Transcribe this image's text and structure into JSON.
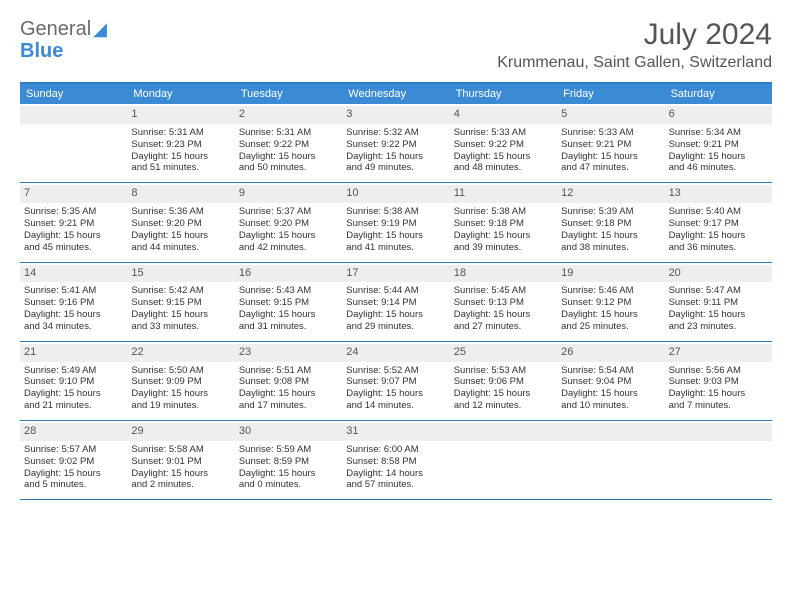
{
  "brand": {
    "line1": "General",
    "line2": "Blue"
  },
  "title": "July 2024",
  "location": "Krummenau, Saint Gallen, Switzerland",
  "colors": {
    "accent": "#3b8bd4",
    "rule": "#2e7bbf",
    "dayband": "#eceef0",
    "text": "#333333",
    "muted": "#555555",
    "background": "#ffffff"
  },
  "typography": {
    "title_fontsize": 30,
    "location_fontsize": 16,
    "dow_fontsize": 11,
    "cell_fontsize": 9.5
  },
  "layout": {
    "columns": 7,
    "rows": 5
  },
  "dow": [
    "Sunday",
    "Monday",
    "Tuesday",
    "Wednesday",
    "Thursday",
    "Friday",
    "Saturday"
  ],
  "weeks": [
    [
      {
        "day": "",
        "sunrise": "",
        "sunset": "",
        "daylight1": "",
        "daylight2": ""
      },
      {
        "day": "1",
        "sunrise": "Sunrise: 5:31 AM",
        "sunset": "Sunset: 9:23 PM",
        "daylight1": "Daylight: 15 hours",
        "daylight2": "and 51 minutes."
      },
      {
        "day": "2",
        "sunrise": "Sunrise: 5:31 AM",
        "sunset": "Sunset: 9:22 PM",
        "daylight1": "Daylight: 15 hours",
        "daylight2": "and 50 minutes."
      },
      {
        "day": "3",
        "sunrise": "Sunrise: 5:32 AM",
        "sunset": "Sunset: 9:22 PM",
        "daylight1": "Daylight: 15 hours",
        "daylight2": "and 49 minutes."
      },
      {
        "day": "4",
        "sunrise": "Sunrise: 5:33 AM",
        "sunset": "Sunset: 9:22 PM",
        "daylight1": "Daylight: 15 hours",
        "daylight2": "and 48 minutes."
      },
      {
        "day": "5",
        "sunrise": "Sunrise: 5:33 AM",
        "sunset": "Sunset: 9:21 PM",
        "daylight1": "Daylight: 15 hours",
        "daylight2": "and 47 minutes."
      },
      {
        "day": "6",
        "sunrise": "Sunrise: 5:34 AM",
        "sunset": "Sunset: 9:21 PM",
        "daylight1": "Daylight: 15 hours",
        "daylight2": "and 46 minutes."
      }
    ],
    [
      {
        "day": "7",
        "sunrise": "Sunrise: 5:35 AM",
        "sunset": "Sunset: 9:21 PM",
        "daylight1": "Daylight: 15 hours",
        "daylight2": "and 45 minutes."
      },
      {
        "day": "8",
        "sunrise": "Sunrise: 5:36 AM",
        "sunset": "Sunset: 9:20 PM",
        "daylight1": "Daylight: 15 hours",
        "daylight2": "and 44 minutes."
      },
      {
        "day": "9",
        "sunrise": "Sunrise: 5:37 AM",
        "sunset": "Sunset: 9:20 PM",
        "daylight1": "Daylight: 15 hours",
        "daylight2": "and 42 minutes."
      },
      {
        "day": "10",
        "sunrise": "Sunrise: 5:38 AM",
        "sunset": "Sunset: 9:19 PM",
        "daylight1": "Daylight: 15 hours",
        "daylight2": "and 41 minutes."
      },
      {
        "day": "11",
        "sunrise": "Sunrise: 5:38 AM",
        "sunset": "Sunset: 9:18 PM",
        "daylight1": "Daylight: 15 hours",
        "daylight2": "and 39 minutes."
      },
      {
        "day": "12",
        "sunrise": "Sunrise: 5:39 AM",
        "sunset": "Sunset: 9:18 PM",
        "daylight1": "Daylight: 15 hours",
        "daylight2": "and 38 minutes."
      },
      {
        "day": "13",
        "sunrise": "Sunrise: 5:40 AM",
        "sunset": "Sunset: 9:17 PM",
        "daylight1": "Daylight: 15 hours",
        "daylight2": "and 36 minutes."
      }
    ],
    [
      {
        "day": "14",
        "sunrise": "Sunrise: 5:41 AM",
        "sunset": "Sunset: 9:16 PM",
        "daylight1": "Daylight: 15 hours",
        "daylight2": "and 34 minutes."
      },
      {
        "day": "15",
        "sunrise": "Sunrise: 5:42 AM",
        "sunset": "Sunset: 9:15 PM",
        "daylight1": "Daylight: 15 hours",
        "daylight2": "and 33 minutes."
      },
      {
        "day": "16",
        "sunrise": "Sunrise: 5:43 AM",
        "sunset": "Sunset: 9:15 PM",
        "daylight1": "Daylight: 15 hours",
        "daylight2": "and 31 minutes."
      },
      {
        "day": "17",
        "sunrise": "Sunrise: 5:44 AM",
        "sunset": "Sunset: 9:14 PM",
        "daylight1": "Daylight: 15 hours",
        "daylight2": "and 29 minutes."
      },
      {
        "day": "18",
        "sunrise": "Sunrise: 5:45 AM",
        "sunset": "Sunset: 9:13 PM",
        "daylight1": "Daylight: 15 hours",
        "daylight2": "and 27 minutes."
      },
      {
        "day": "19",
        "sunrise": "Sunrise: 5:46 AM",
        "sunset": "Sunset: 9:12 PM",
        "daylight1": "Daylight: 15 hours",
        "daylight2": "and 25 minutes."
      },
      {
        "day": "20",
        "sunrise": "Sunrise: 5:47 AM",
        "sunset": "Sunset: 9:11 PM",
        "daylight1": "Daylight: 15 hours",
        "daylight2": "and 23 minutes."
      }
    ],
    [
      {
        "day": "21",
        "sunrise": "Sunrise: 5:49 AM",
        "sunset": "Sunset: 9:10 PM",
        "daylight1": "Daylight: 15 hours",
        "daylight2": "and 21 minutes."
      },
      {
        "day": "22",
        "sunrise": "Sunrise: 5:50 AM",
        "sunset": "Sunset: 9:09 PM",
        "daylight1": "Daylight: 15 hours",
        "daylight2": "and 19 minutes."
      },
      {
        "day": "23",
        "sunrise": "Sunrise: 5:51 AM",
        "sunset": "Sunset: 9:08 PM",
        "daylight1": "Daylight: 15 hours",
        "daylight2": "and 17 minutes."
      },
      {
        "day": "24",
        "sunrise": "Sunrise: 5:52 AM",
        "sunset": "Sunset: 9:07 PM",
        "daylight1": "Daylight: 15 hours",
        "daylight2": "and 14 minutes."
      },
      {
        "day": "25",
        "sunrise": "Sunrise: 5:53 AM",
        "sunset": "Sunset: 9:06 PM",
        "daylight1": "Daylight: 15 hours",
        "daylight2": "and 12 minutes."
      },
      {
        "day": "26",
        "sunrise": "Sunrise: 5:54 AM",
        "sunset": "Sunset: 9:04 PM",
        "daylight1": "Daylight: 15 hours",
        "daylight2": "and 10 minutes."
      },
      {
        "day": "27",
        "sunrise": "Sunrise: 5:56 AM",
        "sunset": "Sunset: 9:03 PM",
        "daylight1": "Daylight: 15 hours",
        "daylight2": "and 7 minutes."
      }
    ],
    [
      {
        "day": "28",
        "sunrise": "Sunrise: 5:57 AM",
        "sunset": "Sunset: 9:02 PM",
        "daylight1": "Daylight: 15 hours",
        "daylight2": "and 5 minutes."
      },
      {
        "day": "29",
        "sunrise": "Sunrise: 5:58 AM",
        "sunset": "Sunset: 9:01 PM",
        "daylight1": "Daylight: 15 hours",
        "daylight2": "and 2 minutes."
      },
      {
        "day": "30",
        "sunrise": "Sunrise: 5:59 AM",
        "sunset": "Sunset: 8:59 PM",
        "daylight1": "Daylight: 15 hours",
        "daylight2": "and 0 minutes."
      },
      {
        "day": "31",
        "sunrise": "Sunrise: 6:00 AM",
        "sunset": "Sunset: 8:58 PM",
        "daylight1": "Daylight: 14 hours",
        "daylight2": "and 57 minutes."
      },
      {
        "day": "",
        "sunrise": "",
        "sunset": "",
        "daylight1": "",
        "daylight2": ""
      },
      {
        "day": "",
        "sunrise": "",
        "sunset": "",
        "daylight1": "",
        "daylight2": ""
      },
      {
        "day": "",
        "sunrise": "",
        "sunset": "",
        "daylight1": "",
        "daylight2": ""
      }
    ]
  ]
}
